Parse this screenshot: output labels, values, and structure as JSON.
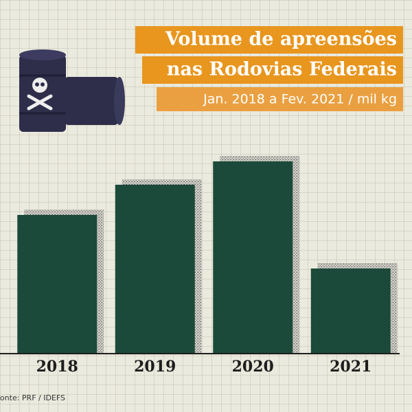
{
  "chart_data": {
    "type": "bar",
    "title": [
      "Volume de apreensões",
      "nas Rodovias Federais"
    ],
    "subtitle": "Jan. 2018 a Fev. 2021 / mil kg",
    "source": "Fonte: PRF / IDEFS",
    "categories": [
      "2018",
      "2019",
      "2020",
      "2021"
    ],
    "values": [
      202,
      246,
      280,
      124
    ],
    "color": "#1c4a3a",
    "ylim": [
      0,
      300
    ]
  }
}
